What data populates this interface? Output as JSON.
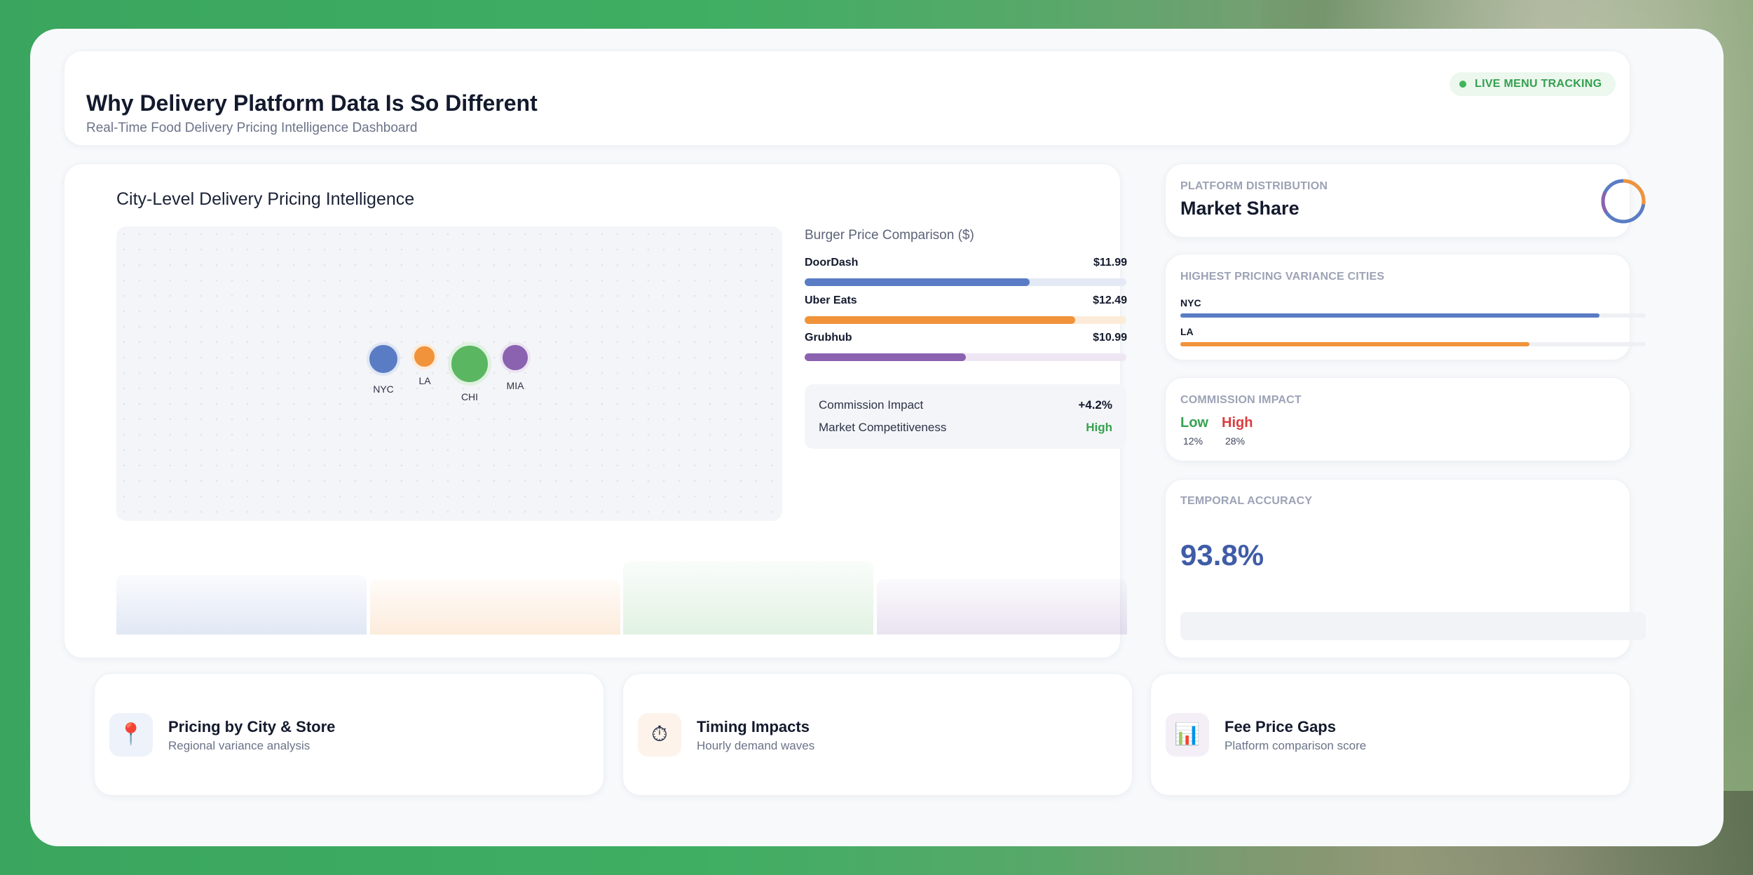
{
  "header": {
    "title": "Why Delivery Platform Data Is So Different",
    "subtitle": "Real-Time Food Delivery Pricing Intelligence Dashboard",
    "badge": "LIVE MENU TRACKING"
  },
  "main": {
    "title": "City-Level Delivery Pricing Intelligence",
    "cities": [
      {
        "label": "NYC",
        "color": "#5a7cc4"
      },
      {
        "label": "LA",
        "color": "#f0933a"
      },
      {
        "label": "CHI",
        "color": "#5bb661"
      },
      {
        "label": "MIA",
        "color": "#8b62b0"
      }
    ],
    "comparison": {
      "title": "Burger Price Comparison ($)",
      "platforms": [
        {
          "name": "DoorDash",
          "price": "$11.99",
          "fill": 0.7,
          "color": "#5a7cc4",
          "track": "#e3e9f5"
        },
        {
          "name": "Uber Eats",
          "price": "$12.49",
          "fill": 0.84,
          "color": "#f0933a",
          "track": "#fcebd9"
        },
        {
          "name": "Grubhub",
          "price": "$10.99",
          "fill": 0.5,
          "color": "#8b62b0",
          "track": "#efe6f3"
        }
      ]
    },
    "metrics": [
      {
        "label": "Commission Impact",
        "value": "+4.2%",
        "color": "#131a2d"
      },
      {
        "label": "Market Competitiveness",
        "value": "High",
        "color": "#36a24f"
      }
    ]
  },
  "side": {
    "distribution": {
      "label": "PLATFORM DISTRIBUTION",
      "title": "Market Share"
    },
    "variance": {
      "label": "HIGHEST PRICING VARIANCE CITIES",
      "cities": [
        {
          "name": "NYC",
          "fill": 0.9,
          "color": "#5a7cc4"
        },
        {
          "name": "LA",
          "fill": 0.75,
          "color": "#f0933a"
        }
      ]
    },
    "commission": {
      "label": "COMMISSION IMPACT",
      "low": "Low",
      "low_pct": "12%",
      "high": "High",
      "high_pct": "28%"
    },
    "temporal": {
      "label": "TEMPORAL ACCURACY",
      "value": "93.8%"
    }
  },
  "features": [
    {
      "icon": "map-pin-icon",
      "glyph": "📍",
      "title": "Pricing by City & Store",
      "subtitle": "Regional variance analysis",
      "bg": "#eef2fa"
    },
    {
      "icon": "stopwatch-icon",
      "glyph": "⏱",
      "title": "Timing Impacts",
      "subtitle": "Hourly demand waves",
      "bg": "#fdf3ea"
    },
    {
      "icon": "bar-chart-icon",
      "glyph": "📊",
      "title": "Fee Price Gaps",
      "subtitle": "Platform comparison score",
      "bg": "#f4eff7"
    }
  ]
}
